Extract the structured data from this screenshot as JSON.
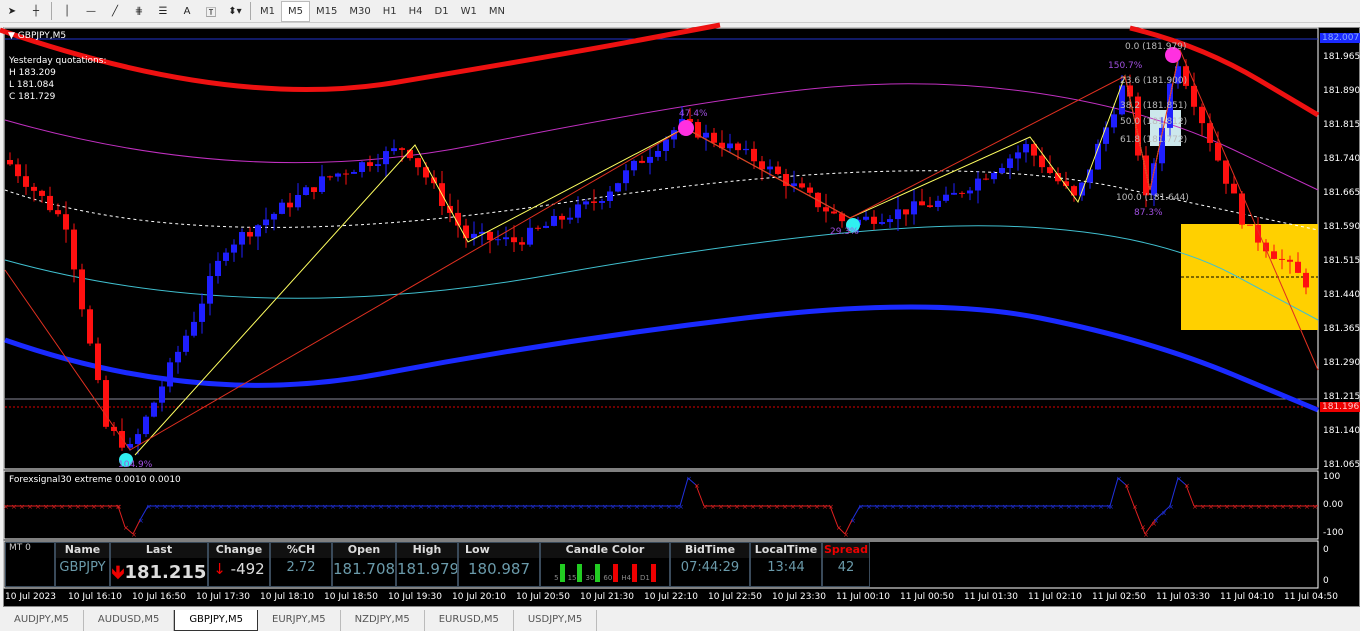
{
  "toolbar": {
    "tools": [
      "cursor-icon",
      "crosshair-icon",
      "vertical-line-icon",
      "horizontal-line-icon",
      "trendline-icon",
      "fibonacci-fan-icon",
      "fibonacci-retracement-icon",
      "text-icon",
      "text-label-icon",
      "arrows-icon"
    ],
    "text_tool": "A",
    "timeframes": [
      "M1",
      "M5",
      "M15",
      "M30",
      "H1",
      "H4",
      "D1",
      "W1",
      "MN"
    ],
    "active_timeframe": "M5"
  },
  "chart": {
    "symbol": "GBPJPY,M5",
    "yesterday_title": "Yesterday quotations:",
    "yesterday_high": "H 183.209",
    "yesterday_low": "L 181.084",
    "yesterday_close": "C 181.729",
    "price_ticks": [
      "181.965",
      "181.890",
      "181.815",
      "181.740",
      "181.665",
      "181.590",
      "181.515",
      "181.440",
      "181.365",
      "181.290",
      "181.215",
      "181.140",
      "181.065"
    ],
    "current_price_label": "182.007",
    "bid_label": "181.196",
    "fib_labels": [
      "0.0 (181.979)",
      "23.6 (181.900)",
      "38.2 (181.851)",
      "50.0 (181.812)",
      "61.8 (181.772)",
      "100.0 (181.644)"
    ],
    "pct_labels": [
      "150.7%",
      "87.3%",
      "47.4%",
      "29.3%",
      "104.9%"
    ],
    "time_ticks": [
      "10 Jul 2023",
      "10 Jul 16:10",
      "10 Jul 16:50",
      "10 Jul 17:30",
      "10 Jul 18:10",
      "10 Jul 18:50",
      "10 Jul 19:30",
      "10 Jul 20:10",
      "10 Jul 20:50",
      "10 Jul 21:30",
      "10 Jul 22:10",
      "10 Jul 22:50",
      "10 Jul 23:30",
      "11 Jul 00:10",
      "11 Jul 00:50",
      "11 Jul 01:30",
      "11 Jul 02:10",
      "11 Jul 02:50",
      "11 Jul 03:30",
      "11 Jul 04:10",
      "11 Jul 04:50"
    ],
    "colors": {
      "bull": "#1f1fff",
      "bear": "#ff1010",
      "background": "#000000",
      "zone": "#ffd000"
    }
  },
  "indicator": {
    "title": "Forexsignal30 extreme 0.0010 0.0010",
    "ticks": [
      "100",
      "0.00",
      "-100"
    ]
  },
  "subwindow": {
    "ticks": [
      "0",
      "0"
    ]
  },
  "info_panel": {
    "mt_label": "MT 0",
    "headers": {
      "name": "Name",
      "last": "Last",
      "change": "Change",
      "pch": "%CH",
      "open": "Open",
      "high": "High",
      "low": "Low",
      "candle": "Candle Color",
      "bidtime": "BidTime",
      "localtime": "LocalTime",
      "spread": "Spread"
    },
    "values": {
      "name": "GBPJPY",
      "last": "181.215",
      "change": "-492",
      "pch": "2.72",
      "open": "181.708",
      "high": "181.979",
      "low": "180.987",
      "bidtime": "07:44:29",
      "localtime": "13:44",
      "spread": "42"
    },
    "candle_tfs": [
      "5",
      "15",
      "30",
      "60",
      "H4",
      "D1"
    ]
  },
  "tabs": [
    "AUDJPY,M5",
    "AUDUSD,M5",
    "GBPJPY,M5",
    "EURJPY,M5",
    "NZDJPY,M5",
    "EURUSD,M5",
    "USDJPY,M5"
  ],
  "active_tab": "GBPJPY,M5"
}
